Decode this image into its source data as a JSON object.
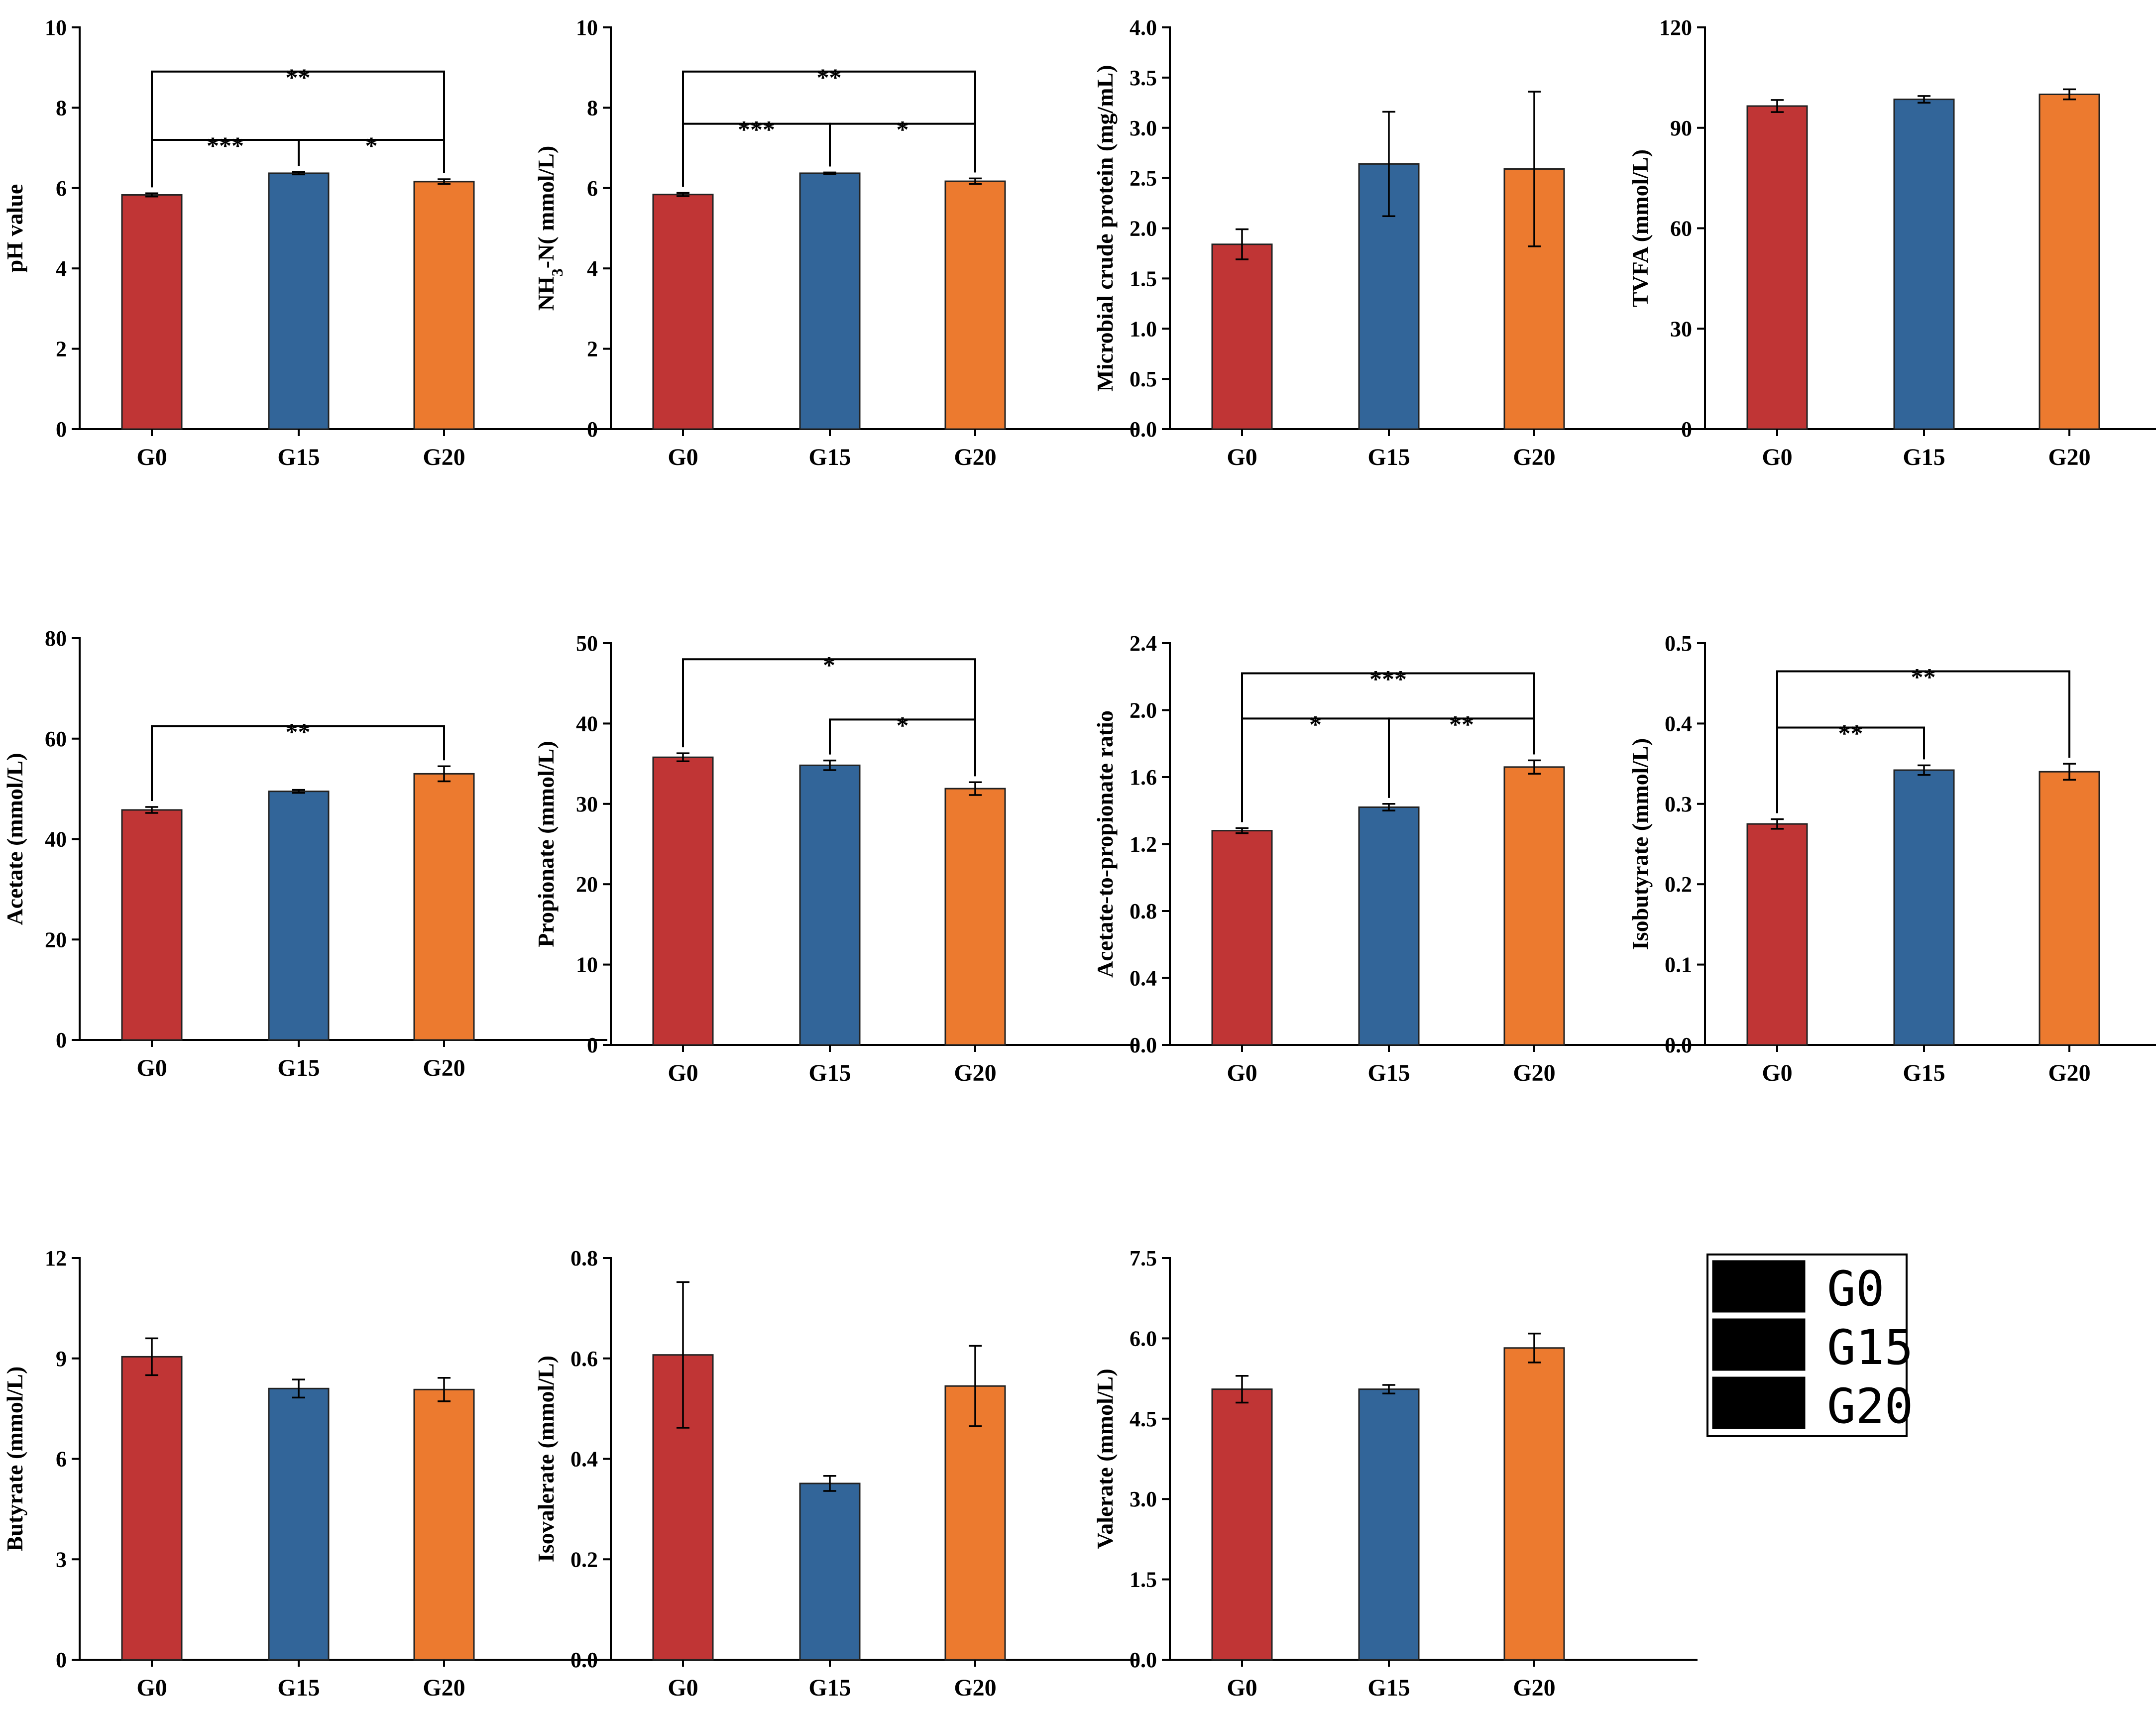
{
  "colors": {
    "G0": "#C03535",
    "G15": "#326599",
    "G20": "#EC7A2F"
  },
  "legend": {
    "items": [
      "G0",
      "G15",
      "G20"
    ]
  },
  "chart_data": [
    {
      "type": "bar",
      "id": "ph",
      "ylabel": "pH value",
      "ylim": [
        0,
        10
      ],
      "yticks": [
        0,
        2,
        4,
        6,
        8,
        10
      ],
      "ytick_labels": [
        "0",
        "2",
        "4",
        "6",
        "8",
        "10"
      ],
      "categories": [
        "G0",
        "G15",
        "G20"
      ],
      "values": [
        5.83,
        6.37,
        6.16
      ],
      "errors": [
        0.04,
        0.03,
        0.06
      ],
      "significance": [
        {
          "from": 0,
          "to": 1,
          "label": "***",
          "y": 7.2
        },
        {
          "from": 1,
          "to": 2,
          "label": "*",
          "y": 7.2
        },
        {
          "from": 0,
          "to": 2,
          "label": "**",
          "y": 8.9
        }
      ]
    },
    {
      "type": "bar",
      "id": "nh3",
      "ylabel": "NH3-N( mmol/L)",
      "ylabel_parts": [
        "NH",
        "3",
        "-N( mmol/L)"
      ],
      "ylim": [
        0,
        10
      ],
      "yticks": [
        0,
        2,
        4,
        6,
        8,
        10
      ],
      "ytick_labels": [
        "0",
        "2",
        "4",
        "6",
        "8",
        "10"
      ],
      "categories": [
        "G0",
        "G15",
        "G20"
      ],
      "values": [
        5.84,
        6.37,
        6.17
      ],
      "errors": [
        0.04,
        0.02,
        0.07
      ],
      "significance": [
        {
          "from": 0,
          "to": 1,
          "label": "***",
          "y": 7.6
        },
        {
          "from": 1,
          "to": 2,
          "label": "*",
          "y": 7.6
        },
        {
          "from": 0,
          "to": 2,
          "label": "**",
          "y": 8.9
        }
      ]
    },
    {
      "type": "bar",
      "id": "mcp",
      "ylabel": "Microbial crude protein (mg/mL)",
      "ylim": [
        0,
        4
      ],
      "yticks": [
        0,
        0.5,
        1,
        1.5,
        2,
        2.5,
        3,
        3.5,
        4
      ],
      "ytick_labels": [
        "0.0",
        "0.5",
        "1.0",
        "1.5",
        "2.0",
        "2.5",
        "3.0",
        "3.5",
        "4.0"
      ],
      "categories": [
        "G0",
        "G15",
        "G20"
      ],
      "values": [
        1.84,
        2.64,
        2.59
      ],
      "errors": [
        0.15,
        0.52,
        0.77
      ],
      "significance": []
    },
    {
      "type": "bar",
      "id": "tvfa",
      "ylabel": "TVFA (mmol/L)",
      "ylim": [
        0,
        120
      ],
      "yticks": [
        0,
        30,
        60,
        90,
        120
      ],
      "ytick_labels": [
        "0",
        "30",
        "60",
        "90",
        "120"
      ],
      "categories": [
        "G0",
        "G15",
        "G20"
      ],
      "values": [
        96.5,
        98.5,
        100.0
      ],
      "errors": [
        1.8,
        1.0,
        1.5
      ],
      "significance": []
    },
    {
      "type": "bar",
      "id": "acetate",
      "ylabel": "Acetate (mmol/L)",
      "ylim": [
        0,
        80
      ],
      "yticks": [
        0,
        20,
        40,
        60,
        80
      ],
      "ytick_labels": [
        "0",
        "20",
        "40",
        "60",
        "80"
      ],
      "categories": [
        "G0",
        "G15",
        "G20"
      ],
      "values": [
        45.8,
        49.5,
        53.0
      ],
      "errors": [
        0.6,
        0.3,
        1.5
      ],
      "significance": [
        {
          "from": 0,
          "to": 2,
          "label": "**",
          "y": 62.5
        }
      ]
    },
    {
      "type": "bar",
      "id": "propionate",
      "ylabel": "Propionate (mmol/L)",
      "ylim": [
        0,
        50
      ],
      "yticks": [
        0,
        10,
        20,
        30,
        40,
        50
      ],
      "ytick_labels": [
        "0",
        "10",
        "20",
        "30",
        "40",
        "50"
      ],
      "categories": [
        "G0",
        "G15",
        "G20"
      ],
      "values": [
        35.8,
        34.8,
        31.9
      ],
      "errors": [
        0.5,
        0.6,
        0.8
      ],
      "significance": [
        {
          "from": 1,
          "to": 2,
          "label": "*",
          "y": 40.5
        },
        {
          "from": 0,
          "to": 2,
          "label": "*",
          "y": 48.0
        }
      ]
    },
    {
      "type": "bar",
      "id": "ratio",
      "ylabel": "Acetate-to-propionate ratio",
      "ylim": [
        0,
        2.4
      ],
      "yticks": [
        0,
        0.4,
        0.8,
        1.2,
        1.6,
        2.0,
        2.4
      ],
      "ytick_labels": [
        "0.0",
        "0.4",
        "0.8",
        "1.2",
        "1.6",
        "2.0",
        "2.4"
      ],
      "categories": [
        "G0",
        "G15",
        "G20"
      ],
      "values": [
        1.28,
        1.42,
        1.66
      ],
      "errors": [
        0.015,
        0.02,
        0.04
      ],
      "significance": [
        {
          "from": 0,
          "to": 1,
          "label": "*",
          "y": 1.95
        },
        {
          "from": 1,
          "to": 2,
          "label": "**",
          "y": 1.95
        },
        {
          "from": 0,
          "to": 2,
          "label": "***",
          "y": 2.22
        }
      ]
    },
    {
      "type": "bar",
      "id": "isobutyrate",
      "ylabel": "Isobutyrate (mmol/L)",
      "ylim": [
        0,
        0.5
      ],
      "yticks": [
        0,
        0.1,
        0.2,
        0.3,
        0.4,
        0.5
      ],
      "ytick_labels": [
        "0.0",
        "0.1",
        "0.2",
        "0.3",
        "0.4",
        "0.5"
      ],
      "categories": [
        "G0",
        "G15",
        "G20"
      ],
      "values": [
        0.275,
        0.342,
        0.34
      ],
      "errors": [
        0.006,
        0.006,
        0.01
      ],
      "significance": [
        {
          "from": 0,
          "to": 1,
          "label": "**",
          "y": 0.395
        },
        {
          "from": 0,
          "to": 2,
          "label": "**",
          "y": 0.465
        }
      ]
    },
    {
      "type": "bar",
      "id": "butyrate",
      "ylabel": "Butyrate (mmol/L)",
      "ylim": [
        0,
        12
      ],
      "yticks": [
        0,
        3,
        6,
        9,
        12
      ],
      "ytick_labels": [
        "0",
        "3",
        "6",
        "9",
        "12"
      ],
      "categories": [
        "G0",
        "G15",
        "G20"
      ],
      "values": [
        9.05,
        8.1,
        8.07
      ],
      "errors": [
        0.55,
        0.27,
        0.35
      ],
      "significance": []
    },
    {
      "type": "bar",
      "id": "isovalerate",
      "ylabel": "Isovalerate (mmol/L)",
      "ylim": [
        0,
        0.8
      ],
      "yticks": [
        0,
        0.2,
        0.4,
        0.6,
        0.8
      ],
      "ytick_labels": [
        "0.0",
        "0.2",
        "0.4",
        "0.6",
        "0.8"
      ],
      "categories": [
        "G0",
        "G15",
        "G20"
      ],
      "values": [
        0.607,
        0.351,
        0.545
      ],
      "errors": [
        0.145,
        0.015,
        0.08
      ],
      "significance": []
    },
    {
      "type": "bar",
      "id": "valerate",
      "ylabel": "Valerate (mmol/L)",
      "ylim": [
        0,
        7.5
      ],
      "yticks": [
        0,
        1.5,
        3,
        4.5,
        6,
        7.5
      ],
      "ytick_labels": [
        "0.0",
        "1.5",
        "3.0",
        "4.5",
        "6.0",
        "7.5"
      ],
      "categories": [
        "G0",
        "G15",
        "G20"
      ],
      "values": [
        5.05,
        5.05,
        5.82
      ],
      "errors": [
        0.25,
        0.08,
        0.27
      ],
      "significance": []
    }
  ]
}
